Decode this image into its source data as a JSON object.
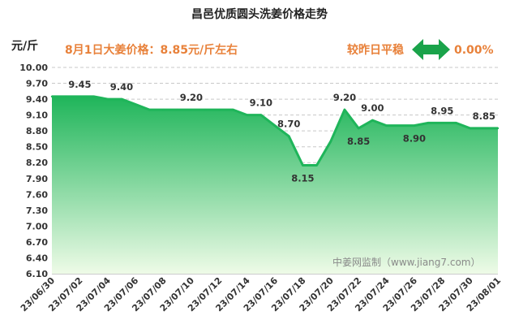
{
  "chart_data": {
    "type": "area",
    "title": "昌邑优质圆头洗姜价格走势",
    "ylabel": "元/斤",
    "ylim": [
      6.1,
      10.0
    ],
    "yticks": [
      "10.00",
      "9.70",
      "9.40",
      "9.10",
      "8.80",
      "8.50",
      "8.20",
      "7.90",
      "7.60",
      "7.30",
      "7.00",
      "6.70",
      "6.40",
      "6.10"
    ],
    "grid": "horizontal-dashed",
    "color": "#1fb55a",
    "x": [
      "23/06/30",
      "23/07/01",
      "23/07/02",
      "23/07/03",
      "23/07/04",
      "23/07/05",
      "23/07/06",
      "23/07/07",
      "23/07/08",
      "23/07/09",
      "23/07/10",
      "23/07/11",
      "23/07/12",
      "23/07/13",
      "23/07/14",
      "23/07/15",
      "23/07/16",
      "23/07/17",
      "23/07/18",
      "23/07/19",
      "23/07/20",
      "23/07/21",
      "23/07/22",
      "23/07/23",
      "23/07/24",
      "23/07/25",
      "23/07/26",
      "23/07/27",
      "23/07/28",
      "23/07/29",
      "23/07/30",
      "23/07/31",
      "23/08/01"
    ],
    "values": [
      9.45,
      9.45,
      9.45,
      9.45,
      9.4,
      9.4,
      9.3,
      9.2,
      9.2,
      9.2,
      9.2,
      9.2,
      9.2,
      9.2,
      9.1,
      9.1,
      8.9,
      8.7,
      8.15,
      8.15,
      8.6,
      9.2,
      8.85,
      9.0,
      8.9,
      8.9,
      8.9,
      8.95,
      8.95,
      8.95,
      8.85,
      8.85,
      8.85
    ],
    "xtick_labels": [
      "23/06/30",
      "23/07/02",
      "23/07/04",
      "23/07/06",
      "23/07/08",
      "23/07/10",
      "23/07/12",
      "23/07/14",
      "23/07/16",
      "23/07/18",
      "23/07/20",
      "23/07/22",
      "23/07/24",
      "23/07/26",
      "23/07/28",
      "23/07/30",
      "23/08/01"
    ],
    "data_labels": [
      {
        "index": 2,
        "text": "9.45",
        "pos": "above"
      },
      {
        "index": 5,
        "text": "9.40",
        "pos": "above"
      },
      {
        "index": 10,
        "text": "9.20",
        "pos": "above"
      },
      {
        "index": 15,
        "text": "9.10",
        "pos": "above"
      },
      {
        "index": 17,
        "text": "8.70",
        "pos": "above"
      },
      {
        "index": 18,
        "text": "8.15",
        "pos": "below"
      },
      {
        "index": 21,
        "text": "9.20",
        "pos": "above"
      },
      {
        "index": 22,
        "text": "8.85",
        "pos": "below"
      },
      {
        "index": 23,
        "text": "9.00",
        "pos": "above"
      },
      {
        "index": 26,
        "text": "8.90",
        "pos": "below"
      },
      {
        "index": 28,
        "text": "8.95",
        "pos": "above"
      },
      {
        "index": 31,
        "text": "8.85",
        "pos": "above"
      }
    ]
  },
  "info": {
    "price_text": "8月1日大姜价格：8.85元/斤左右",
    "compare_text": "较昨日平稳",
    "change_text": "0.00%",
    "accent_color": "#e8813a",
    "arrow_color": "#1aa34a"
  },
  "watermark": "中姜网监制（www.jiang7.com）"
}
